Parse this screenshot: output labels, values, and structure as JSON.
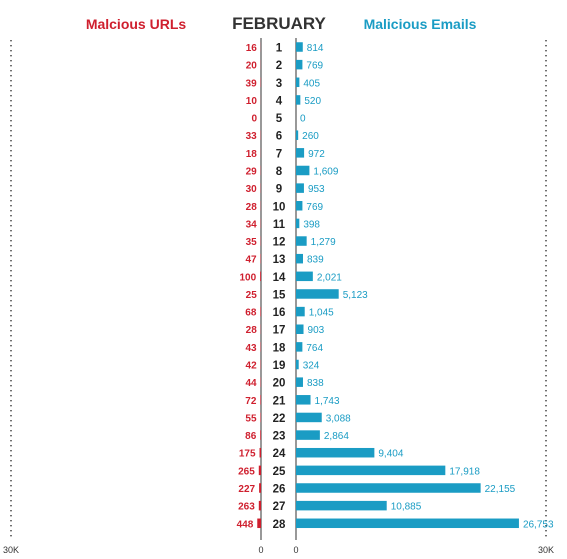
{
  "header": {
    "left_title": "Malcious URLs",
    "center_title": "FEBRUARY",
    "right_title": "Malicious Emails"
  },
  "colors": {
    "urls": "#cf1f2e",
    "emails": "#1a9cc4",
    "days": "#222222",
    "axis": "#555555",
    "dots": "#333333"
  },
  "axis_labels": {
    "left_max": "30K",
    "left_zero": "0",
    "right_zero": "0",
    "right_max": "30K"
  },
  "chart_data": {
    "type": "bar",
    "orientation": "horizontal-butterfly",
    "title": "FEBRUARY",
    "categories": [
      "1",
      "2",
      "3",
      "4",
      "5",
      "6",
      "7",
      "8",
      "9",
      "10",
      "11",
      "12",
      "13",
      "14",
      "15",
      "16",
      "17",
      "18",
      "19",
      "20",
      "21",
      "22",
      "23",
      "24",
      "25",
      "26",
      "27",
      "28"
    ],
    "series": [
      {
        "name": "Malcious URLs",
        "side": "left",
        "values": [
          16,
          20,
          39,
          10,
          0,
          33,
          18,
          29,
          30,
          28,
          34,
          35,
          47,
          100,
          25,
          68,
          28,
          43,
          42,
          44,
          72,
          55,
          86,
          175,
          265,
          227,
          263,
          448
        ],
        "labels": [
          "16",
          "20",
          "39",
          "10",
          "0",
          "33",
          "18",
          "29",
          "30",
          "28",
          "34",
          "35",
          "47",
          "100",
          "25",
          "68",
          "28",
          "43",
          "42",
          "44",
          "72",
          "55",
          "86",
          "175",
          "265",
          "227",
          "263",
          "448"
        ]
      },
      {
        "name": "Malicious Emails",
        "side": "right",
        "values": [
          814,
          769,
          405,
          520,
          0,
          260,
          972,
          1609,
          953,
          769,
          398,
          1279,
          839,
          2021,
          5123,
          1045,
          903,
          764,
          324,
          838,
          1743,
          3088,
          2864,
          9404,
          17918,
          22155,
          10885,
          26753
        ],
        "labels": [
          "814",
          "769",
          "405",
          "520",
          "0",
          "260",
          "972",
          "1,609",
          "953",
          "769",
          "398",
          "1,279",
          "839",
          "2,021",
          "5,123",
          "1,045",
          "903",
          "764",
          "324",
          "838",
          "1,743",
          "3,088",
          "2,864",
          "9,404",
          "17,918",
          "22,155",
          "10,885",
          "26,753"
        ]
      }
    ],
    "xlim_left": [
      0,
      30000
    ],
    "xlim_right": [
      0,
      30000
    ],
    "tick_labels": [
      "30K",
      "0",
      "0",
      "30K"
    ],
    "grid": false,
    "legend": "top"
  }
}
